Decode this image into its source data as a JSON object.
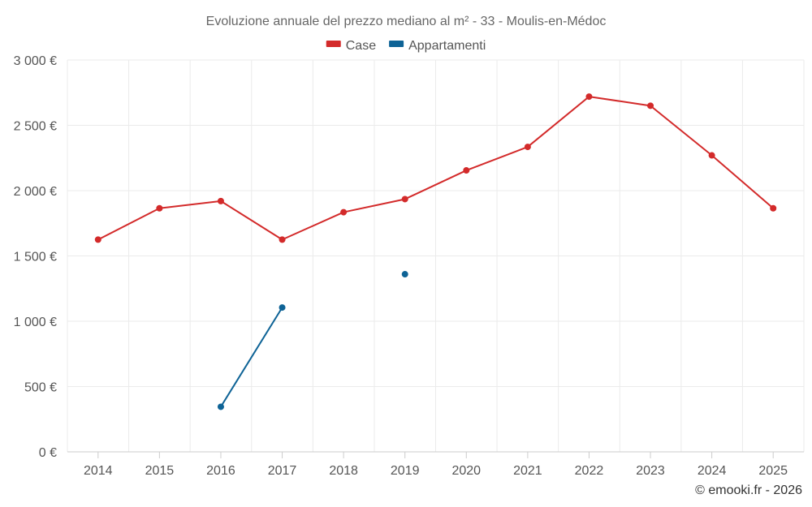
{
  "chart_data": {
    "type": "line",
    "title": "Evoluzione annuale del prezzo mediano al m² - 33 - Moulis-en-Médoc",
    "categories": [
      "2014",
      "2015",
      "2016",
      "2017",
      "2018",
      "2019",
      "2020",
      "2021",
      "2022",
      "2023",
      "2024",
      "2025"
    ],
    "ylim": [
      0,
      3000
    ],
    "yticks": [
      0,
      500,
      1000,
      1500,
      2000,
      2500,
      3000
    ],
    "ytick_labels": [
      "0 €",
      "500 €",
      "1 000 €",
      "1 500 €",
      "2 000 €",
      "2 500 €",
      "3 000 €"
    ],
    "grid": true,
    "legend_position": "top-center",
    "series": [
      {
        "name": "Case",
        "color": "#d32a2a",
        "values": [
          1625,
          1865,
          1920,
          1625,
          1835,
          1935,
          2155,
          2335,
          2720,
          2650,
          2270,
          1865
        ]
      },
      {
        "name": "Appartamenti",
        "color": "#0e6396",
        "values": [
          null,
          null,
          345,
          1105,
          null,
          1360,
          null,
          null,
          null,
          null,
          null,
          null
        ]
      }
    ],
    "credit": "© emooki.fr - 2026"
  }
}
